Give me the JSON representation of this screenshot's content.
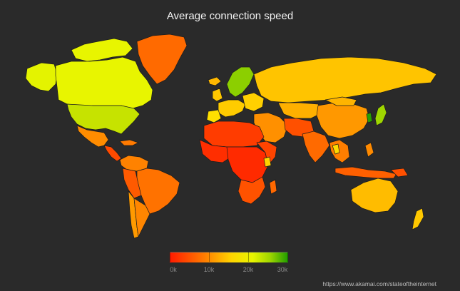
{
  "title": "Average connection speed",
  "legend": {
    "ticks": [
      "0k",
      "10k",
      "20k",
      "30k"
    ],
    "colors": [
      "#ff1a00",
      "#ff7f00",
      "#ffd400",
      "#e8f500",
      "#9dd600",
      "#1e9b00"
    ]
  },
  "source": "https://www.akamai.com/stateoftheinternet",
  "palette": {
    "background": "#2a2a2a",
    "border": "#1a1a1a"
  }
}
